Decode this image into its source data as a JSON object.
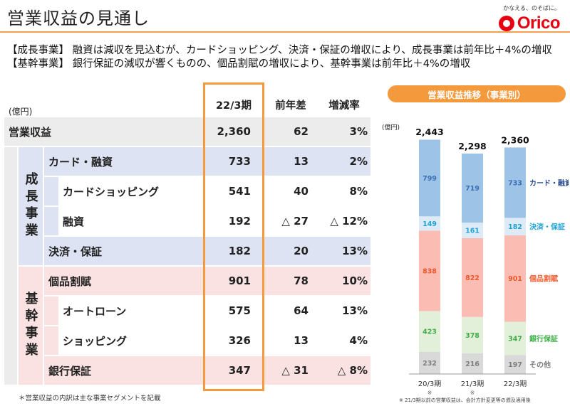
{
  "header": {
    "title": "営業収益の見通し",
    "logo_tagline": "かなえる、のそばに。",
    "logo_name": "Orico"
  },
  "summary": {
    "growth": "【成長事業】 融資は減収を見込むが、カードショッピング、決済・保証の増収により、成長事業は前年比＋4%の増収",
    "core": "【基幹事業】 銀行保証の減収が響くものの、個品割賦の増収により、基幹事業は前年比＋4%の増収"
  },
  "table": {
    "unit": "(億円)",
    "columns": [
      "22/3期",
      "前年差",
      "増減率"
    ],
    "total": {
      "label": "営業収益",
      "values": [
        "2,360",
        "62",
        "3%"
      ]
    },
    "segments": [
      {
        "label": "成長事業",
        "rows": [
          {
            "label": "カード・融資",
            "level": 1,
            "values": [
              "733",
              "13",
              "2%"
            ]
          },
          {
            "label": "カードショッピング",
            "level": 2,
            "values": [
              "541",
              "40",
              "8%"
            ]
          },
          {
            "label": "融資",
            "level": 2,
            "values": [
              "192",
              "△ 27",
              "△ 12%"
            ]
          },
          {
            "label": "決済・保証",
            "level": 1,
            "values": [
              "182",
              "20",
              "13%"
            ]
          }
        ]
      },
      {
        "label": "基幹事業",
        "rows": [
          {
            "label": "個品割賦",
            "level": 1,
            "values": [
              "901",
              "78",
              "10%"
            ]
          },
          {
            "label": "オートローン",
            "level": 2,
            "values": [
              "575",
              "64",
              "13%"
            ]
          },
          {
            "label": "ショッピング",
            "level": 2,
            "values": [
              "326",
              "13",
              "4%"
            ]
          },
          {
            "label": "銀行保証",
            "level": 1,
            "values": [
              "347",
              "△ 31",
              "△ 8%"
            ]
          }
        ]
      }
    ],
    "footnote": "＊営業収益の内訳は主な事業セグメントを記載"
  },
  "colors": {
    "accent_orange": "#f59a3c",
    "growth_bg": "#dde3f2",
    "core_bg": "#fbe2e2",
    "gray_bg": "#ececec",
    "sub_bg": "#ffffff"
  },
  "chart_data": {
    "type": "bar",
    "stacked": true,
    "title": "営業収益推移（事業別）",
    "ylabel": "(億円)",
    "categories": [
      "20/3期",
      "21/3期",
      "22/3期"
    ],
    "category_notes": [
      "※",
      "※",
      ""
    ],
    "totals": [
      "2,443",
      "2,298",
      "2,360"
    ],
    "total_values": [
      2443,
      2298,
      2360
    ],
    "series": [
      {
        "name": "その他",
        "values": [
          232,
          216,
          197
        ],
        "color": "#d9d9d9",
        "label_color": "#7f7f7f"
      },
      {
        "name": "銀行保証",
        "values": [
          423,
          378,
          347
        ],
        "color": "#e2efd9",
        "label_color": "#3fae49"
      },
      {
        "name": "個品割賦",
        "values": [
          838,
          822,
          901
        ],
        "color": "#fbbdb3",
        "label_color": "#f0572a"
      },
      {
        "name": "決済・保証",
        "values": [
          149,
          161,
          182
        ],
        "color": "#ddebf7",
        "label_color": "#1fa3d6"
      },
      {
        "name": "カード・融資",
        "values": [
          799,
          719,
          733
        ],
        "color": "#9dc3e6",
        "label_color": "#3b6fb5"
      }
    ],
    "legend_colors": [
      "#7f7f7f",
      "#3fae49",
      "#f0572a",
      "#1fa3d6",
      "#2f4f8f"
    ],
    "footnote": "※ 21/3期以前の営業収益は、会計方針変更等の遡及適用後"
  }
}
